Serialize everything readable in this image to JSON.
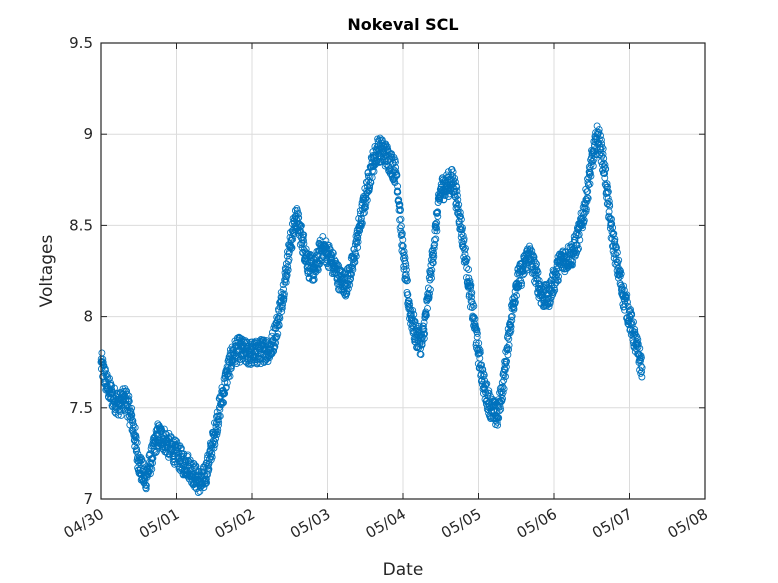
{
  "chart_data": {
    "type": "scatter",
    "title": "Nokeval SCL",
    "xlabel": "Date",
    "ylabel": "Voltages",
    "xlim": [
      "04/30",
      "05/08"
    ],
    "ylim": [
      7,
      9.5
    ],
    "x_ticks": [
      "04/30",
      "05/01",
      "05/02",
      "05/03",
      "05/04",
      "05/05",
      "05/06",
      "05/07",
      "05/08"
    ],
    "y_ticks": [
      "7",
      "7.5",
      "8",
      "8.5",
      "9",
      "9.5"
    ],
    "grid": true,
    "legend": "none",
    "marker": "circle-open",
    "colors": {
      "series": "#0072BD"
    },
    "series": [
      {
        "x": [
          "04/30 00:00",
          "04/30 02:00",
          "04/30 04:00",
          "04/30 06:00",
          "04/30 08:00",
          "04/30 10:00",
          "04/30 12:00",
          "04/30 14:00",
          "04/30 16:00",
          "04/30 18:00",
          "04/30 20:00",
          "04/30 22:00",
          "05/01 00:00",
          "05/01 02:00",
          "05/01 04:00",
          "05/01 06:00",
          "05/01 08:00",
          "05/01 10:00",
          "05/01 12:00",
          "05/01 14:00",
          "05/01 16:00",
          "05/01 18:00",
          "05/01 20:00",
          "05/01 22:00",
          "05/02 00:00",
          "05/02 02:00",
          "05/02 04:00",
          "05/02 06:00",
          "05/02 08:00",
          "05/02 10:00",
          "05/02 12:00",
          "05/02 14:00",
          "05/02 16:00",
          "05/02 18:00",
          "05/02 20:00",
          "05/02 22:00",
          "05/03 00:00",
          "05/03 02:00",
          "05/03 04:00",
          "05/03 06:00",
          "05/03 08:00",
          "05/03 10:00",
          "05/03 12:00",
          "05/03 14:00",
          "05/03 16:00",
          "05/03 18:00",
          "05/03 20:00",
          "05/03 22:00",
          "05/04 00:00",
          "05/04 02:00",
          "05/04 04:00",
          "05/04 06:00",
          "05/04 08:00",
          "05/04 10:00",
          "05/04 12:00",
          "05/04 14:00",
          "05/04 16:00",
          "05/04 18:00",
          "05/04 20:00",
          "05/04 22:00",
          "05/05 00:00",
          "05/05 02:00",
          "05/05 04:00",
          "05/05 06:00",
          "05/05 08:00",
          "05/05 10:00",
          "05/05 12:00",
          "05/05 14:00",
          "05/05 16:00",
          "05/05 18:00",
          "05/05 20:00",
          "05/05 22:00",
          "05/06 00:00",
          "05/06 02:00",
          "05/06 04:00",
          "05/06 06:00",
          "05/06 08:00",
          "05/06 10:00",
          "05/06 12:00",
          "05/06 14:00",
          "05/06 16:00",
          "05/06 18:00",
          "05/06 20:00",
          "05/06 22:00",
          "05/07 00:00",
          "05/07 02:00",
          "05/07 04:00"
        ],
        "y": [
          7.75,
          7.62,
          7.55,
          7.52,
          7.55,
          7.42,
          7.2,
          7.1,
          7.22,
          7.35,
          7.33,
          7.28,
          7.25,
          7.2,
          7.18,
          7.12,
          7.08,
          7.18,
          7.35,
          7.52,
          7.68,
          7.8,
          7.82,
          7.8,
          7.8,
          7.8,
          7.82,
          7.82,
          7.95,
          8.15,
          8.38,
          8.55,
          8.42,
          8.28,
          8.25,
          8.38,
          8.35,
          8.28,
          8.2,
          8.18,
          8.28,
          8.48,
          8.65,
          8.82,
          8.92,
          8.9,
          8.85,
          8.78,
          8.35,
          8.05,
          7.9,
          7.85,
          8.1,
          8.42,
          8.7,
          8.72,
          8.75,
          8.55,
          8.3,
          8.05,
          7.8,
          7.6,
          7.5,
          7.45,
          7.65,
          7.95,
          8.18,
          8.25,
          8.35,
          8.25,
          8.12,
          8.1,
          8.2,
          8.3,
          8.32,
          8.35,
          8.45,
          8.62,
          8.85,
          9.0,
          8.82,
          8.5,
          8.3,
          8.12,
          8.0,
          7.85,
          7.72
        ]
      }
    ]
  }
}
